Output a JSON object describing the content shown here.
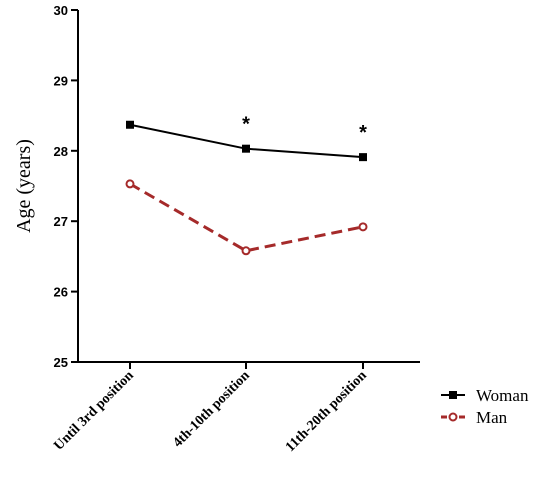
{
  "chart_data": {
    "type": "line",
    "title": "",
    "xlabel": "",
    "ylabel": "Age (years)",
    "ylim": [
      25,
      30
    ],
    "yticks": [
      "25",
      "26",
      "27",
      "28",
      "29",
      "30"
    ],
    "categories": [
      "Until 3rd position",
      "4th-10th position",
      "11th-20th position"
    ],
    "series": [
      {
        "name": "Woman",
        "values": [
          28.37,
          28.03,
          27.91
        ],
        "color": "#000000",
        "line": "solid",
        "marker": "filled-square"
      },
      {
        "name": "Man",
        "values": [
          27.53,
          26.58,
          26.92
        ],
        "color": "#a52a2a",
        "line": "dashed",
        "marker": "open-circle"
      }
    ],
    "significance_markers": [
      "",
      "*",
      "*"
    ],
    "grid": false,
    "legend_position": "bottom-right"
  }
}
